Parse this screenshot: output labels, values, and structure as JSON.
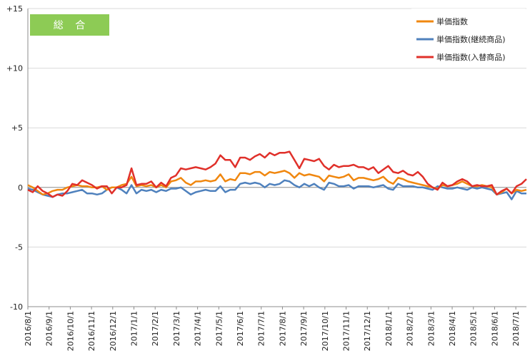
{
  "colors": {
    "series_0": "#F0870F",
    "series_1": "#4F81BD",
    "series_2": "#E0302A",
    "badge_bg": "#8DCB55",
    "grid": "#D9D9D9"
  },
  "badge": {
    "label": "総 合"
  },
  "chart_data": {
    "type": "line",
    "title": "",
    "xlabel": "",
    "ylabel": "",
    "ylim": [
      -10,
      15
    ],
    "yticks": [
      -10,
      -5,
      0,
      5,
      10,
      15
    ],
    "ytick_labels": [
      "-10",
      "-5",
      "0",
      "+5",
      "+10",
      "+15"
    ],
    "grid": true,
    "legend_position": "top-right",
    "x_labels": [
      "2016/8/1",
      "2016/9/1",
      "2016/10/1",
      "2016/11/1",
      "2016/12/1",
      "2017/1/1",
      "2017/2/1",
      "2017/3/1",
      "2017/4/1",
      "2017/5/1",
      "2017/6/1",
      "2017/7/1",
      "2017/8/1",
      "2017/9/1",
      "2017/10/1",
      "2017/11/1",
      "2017/12/1",
      "2018/1/1",
      "2018/2/1",
      "2018/3/1",
      "2018/4/1",
      "2018/5/1",
      "2018/6/1",
      "2018/7/1"
    ],
    "series": [
      {
        "name": "単価指数",
        "values": [
          0.2,
          0.0,
          -0.3,
          -0.6,
          -0.5,
          -0.3,
          -0.2,
          -0.2,
          0.0,
          0.1,
          0.2,
          0.1,
          0.1,
          0.0,
          0.0,
          0.1,
          -0.2,
          0.0,
          0.0,
          0.2,
          0.3,
          0.9,
          0.1,
          0.2,
          0.1,
          0.2,
          0.0,
          0.2,
          0.0,
          0.5,
          0.6,
          0.8,
          0.4,
          0.2,
          0.5,
          0.5,
          0.6,
          0.5,
          0.6,
          1.1,
          0.5,
          0.7,
          0.6,
          1.2,
          1.2,
          1.1,
          1.3,
          1.3,
          1.0,
          1.3,
          1.2,
          1.3,
          1.4,
          1.2,
          0.8,
          1.2,
          1.0,
          1.1,
          1.0,
          0.9,
          0.5,
          1.0,
          0.9,
          0.8,
          0.9,
          1.1,
          0.6,
          0.8,
          0.8,
          0.7,
          0.6,
          0.7,
          0.9,
          0.5,
          0.3,
          0.8,
          0.7,
          0.5,
          0.4,
          0.3,
          0.2,
          0.1,
          0.0,
          -0.1,
          0.2,
          0.1,
          0.2,
          0.3,
          0.5,
          0.3,
          0.1,
          0.1,
          0.2,
          0.1,
          0.0,
          -0.6,
          -0.4,
          -0.1,
          -0.5,
          -0.2,
          -0.3,
          -0.2
        ],
        "values_note": "weekly samples spanning the x axis"
      },
      {
        "name": "単価指数(継続商品)",
        "values": [
          -0.1,
          -0.2,
          -0.4,
          -0.6,
          -0.7,
          -0.8,
          -0.6,
          -0.5,
          -0.5,
          -0.4,
          -0.3,
          -0.2,
          -0.5,
          -0.5,
          -0.6,
          -0.5,
          -0.2,
          0.0,
          0.0,
          -0.2,
          -0.5,
          0.2,
          -0.5,
          -0.2,
          -0.3,
          -0.2,
          -0.4,
          -0.2,
          -0.3,
          -0.1,
          -0.1,
          0.0,
          -0.3,
          -0.6,
          -0.4,
          -0.3,
          -0.2,
          -0.3,
          -0.3,
          0.1,
          -0.4,
          -0.2,
          -0.2,
          0.3,
          0.4,
          0.3,
          0.4,
          0.3,
          0.0,
          0.3,
          0.2,
          0.3,
          0.6,
          0.5,
          0.2,
          0.0,
          0.3,
          0.1,
          0.3,
          0.0,
          -0.2,
          0.4,
          0.3,
          0.1,
          0.1,
          0.2,
          -0.1,
          0.1,
          0.1,
          0.1,
          0.0,
          0.1,
          0.2,
          -0.1,
          -0.2,
          0.3,
          0.1,
          0.1,
          0.1,
          0.0,
          0.0,
          -0.1,
          -0.2,
          0.1,
          0.0,
          -0.1,
          -0.1,
          0.0,
          -0.1,
          -0.2,
          0.0,
          -0.1,
          0.0,
          -0.1,
          -0.2,
          -0.6,
          -0.5,
          -0.4,
          -1.0,
          -0.3,
          -0.5,
          -0.5
        ]
      },
      {
        "name": "単価指数(入替商品)",
        "values": [
          -0.2,
          -0.4,
          0.1,
          -0.3,
          -0.5,
          -0.8,
          -0.6,
          -0.7,
          -0.3,
          0.3,
          0.2,
          0.6,
          0.4,
          0.2,
          -0.1,
          0.1,
          0.1,
          -0.5,
          0.0,
          0.0,
          0.2,
          1.6,
          0.2,
          0.3,
          0.3,
          0.5,
          0.0,
          0.4,
          0.1,
          0.8,
          1.0,
          1.6,
          1.5,
          1.6,
          1.7,
          1.6,
          1.5,
          1.7,
          2.0,
          2.7,
          2.3,
          2.3,
          1.7,
          2.5,
          2.5,
          2.3,
          2.6,
          2.8,
          2.5,
          2.9,
          2.7,
          2.9,
          2.9,
          3.0,
          2.3,
          1.6,
          2.4,
          2.3,
          2.2,
          2.4,
          1.8,
          1.5,
          1.9,
          1.7,
          1.8,
          1.8,
          1.9,
          1.7,
          1.7,
          1.5,
          1.7,
          1.2,
          1.5,
          1.8,
          1.3,
          1.2,
          1.4,
          1.1,
          1.0,
          1.3,
          0.9,
          0.3,
          0.0,
          -0.2,
          0.4,
          0.1,
          0.2,
          0.5,
          0.7,
          0.5,
          0.1,
          0.2,
          0.1,
          0.1,
          0.2,
          -0.6,
          -0.3,
          -0.1,
          -0.5,
          0.1,
          0.3,
          0.7
        ]
      }
    ]
  }
}
